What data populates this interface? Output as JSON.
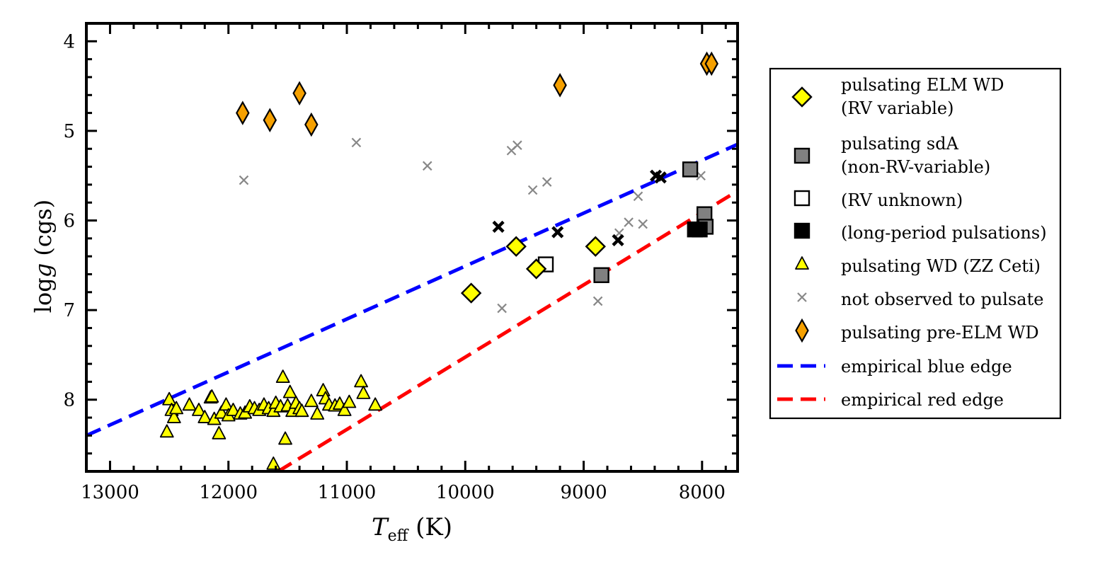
{
  "chart_data": {
    "type": "scatter",
    "title": "",
    "xlabel": {
      "main": "T",
      "sub": "eff",
      "unit": " (K)"
    },
    "ylabel": {
      "prefix": "log",
      "italic": "g",
      "suffix": " (cgs)"
    },
    "xlim": [
      13200,
      7700
    ],
    "ylim": [
      8.8,
      3.8
    ],
    "x_ticks": [
      13000,
      12000,
      11000,
      10000,
      9000,
      8000
    ],
    "x_tick_labels": [
      "13000",
      "12000",
      "11000",
      "10000",
      "9000",
      "8000"
    ],
    "y_ticks": [
      4,
      5,
      6,
      7,
      8
    ],
    "y_tick_labels": [
      "4",
      "5",
      "6",
      "7",
      "8"
    ],
    "grid": false,
    "legend_position": "outside-right",
    "legend": [
      {
        "key": "elm",
        "lines": [
          "pulsating ELM WD",
          "(RV variable)"
        ]
      },
      {
        "key": "sda",
        "lines": [
          "pulsating sdA",
          "(non-RV-variable)"
        ]
      },
      {
        "key": "sda_unknown",
        "lines": [
          "(RV unknown)"
        ]
      },
      {
        "key": "sda_long",
        "lines": [
          "(long-period pulsations)"
        ]
      },
      {
        "key": "zz",
        "lines": [
          "pulsating WD (ZZ Ceti)"
        ]
      },
      {
        "key": "nov",
        "lines": [
          "not observed to pulsate"
        ]
      },
      {
        "key": "preelm",
        "lines": [
          "pulsating pre-ELM WD"
        ]
      },
      {
        "key": "blue",
        "lines": [
          "empirical blue edge"
        ]
      },
      {
        "key": "red",
        "lines": [
          "empirical red edge"
        ]
      }
    ],
    "colors": {
      "elm": "#ffff00",
      "sda": "#808080",
      "sda_unknown": "#ffffff",
      "sda_long": "#000000",
      "zz": "#ffff00",
      "nov": "#888888",
      "nov_black": "#000000",
      "preelm": "#f5a000",
      "blue": "#0000ff",
      "red": "#ff0000"
    },
    "series": [
      {
        "name": "pulsating ELM WD (RV variable)",
        "marker": "diamond",
        "points": [
          [
            9950,
            6.81
          ],
          [
            9570,
            6.29
          ],
          [
            9400,
            6.54
          ],
          [
            8900,
            6.29
          ]
        ]
      },
      {
        "name": "pulsating sdA (non-RV-variable)",
        "marker": "square",
        "points": [
          [
            8850,
            6.61
          ],
          [
            8100,
            5.43
          ],
          [
            7980,
            5.93
          ],
          [
            7970,
            6.07
          ]
        ]
      },
      {
        "name": "pulsating sdA (RV unknown)",
        "marker": "square-open",
        "points": [
          [
            9320,
            6.49
          ]
        ]
      },
      {
        "name": "pulsating sdA (long-period pulsations)",
        "marker": "square-filled",
        "points": [
          [
            8060,
            6.1
          ],
          [
            8020,
            6.1
          ]
        ]
      },
      {
        "name": "pulsating WD (ZZ Ceti)",
        "marker": "triangle",
        "points": [
          [
            12520,
            8.36
          ],
          [
            12500,
            8.0
          ],
          [
            12480,
            8.12
          ],
          [
            12460,
            8.2
          ],
          [
            12440,
            8.1
          ],
          [
            12330,
            8.06
          ],
          [
            12250,
            8.12
          ],
          [
            12200,
            8.2
          ],
          [
            12150,
            7.98
          ],
          [
            12120,
            8.22
          ],
          [
            12080,
            8.38
          ],
          [
            12060,
            8.15
          ],
          [
            12020,
            8.06
          ],
          [
            12000,
            8.18
          ],
          [
            11960,
            8.12
          ],
          [
            11900,
            8.16
          ],
          [
            11860,
            8.15
          ],
          [
            11820,
            8.08
          ],
          [
            11780,
            8.1
          ],
          [
            11740,
            8.12
          ],
          [
            11700,
            8.06
          ],
          [
            11660,
            8.1
          ],
          [
            11620,
            8.13
          ],
          [
            11600,
            8.04
          ],
          [
            11560,
            8.08
          ],
          [
            11540,
            7.75
          ],
          [
            11520,
            8.44
          ],
          [
            11500,
            8.07
          ],
          [
            11480,
            7.92
          ],
          [
            11460,
            8.13
          ],
          [
            11430,
            8.04
          ],
          [
            11400,
            8.1
          ],
          [
            11380,
            8.13
          ],
          [
            11300,
            8.02
          ],
          [
            11250,
            8.16
          ],
          [
            11200,
            7.9
          ],
          [
            11180,
            7.99
          ],
          [
            11150,
            8.06
          ],
          [
            11100,
            8.07
          ],
          [
            11060,
            8.05
          ],
          [
            11020,
            8.12
          ],
          [
            10980,
            8.03
          ],
          [
            10880,
            7.8
          ],
          [
            10860,
            7.93
          ],
          [
            10760,
            8.06
          ],
          [
            11620,
            8.72
          ],
          [
            12140,
            7.97
          ]
        ]
      },
      {
        "name": "not observed to pulsate",
        "marker": "x",
        "points": [
          [
            11870,
            5.55
          ],
          [
            10920,
            5.13
          ],
          [
            10320,
            5.39
          ],
          [
            9690,
            6.98
          ],
          [
            9610,
            5.22
          ],
          [
            9560,
            5.16
          ],
          [
            9430,
            5.66
          ],
          [
            9310,
            5.57
          ],
          [
            8880,
            6.9
          ],
          [
            8700,
            6.14
          ],
          [
            8620,
            6.02
          ],
          [
            8540,
            5.73
          ],
          [
            8500,
            6.04
          ],
          [
            8010,
            5.5
          ]
        ]
      },
      {
        "name": "not observed to pulsate (black)",
        "marker": "x-bold",
        "points": [
          [
            9720,
            6.07
          ],
          [
            9220,
            6.13
          ],
          [
            8710,
            6.22
          ],
          [
            8390,
            5.5
          ],
          [
            8350,
            5.52
          ]
        ]
      },
      {
        "name": "pulsating pre-ELM WD",
        "marker": "diamond-tall",
        "points": [
          [
            11880,
            4.8
          ],
          [
            11650,
            4.88
          ],
          [
            11400,
            4.58
          ],
          [
            11300,
            4.93
          ],
          [
            9200,
            4.49
          ],
          [
            7960,
            4.25
          ],
          [
            7920,
            4.25
          ]
        ]
      }
    ],
    "lines": [
      {
        "name": "empirical blue edge",
        "style": "dashed",
        "points": [
          [
            13200,
            8.4
          ],
          [
            7700,
            5.15
          ]
        ]
      },
      {
        "name": "empirical red edge",
        "style": "dashed",
        "points": [
          [
            11580,
            8.8
          ],
          [
            7700,
            5.67
          ]
        ]
      }
    ]
  }
}
